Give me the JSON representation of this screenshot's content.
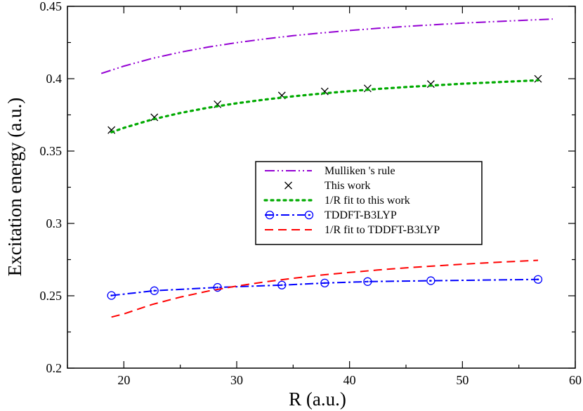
{
  "chart_data": {
    "type": "line",
    "title": "",
    "xlabel": "R (a.u.)",
    "ylabel": "Excitation energy (a.u.)",
    "xlim": [
      15,
      60
    ],
    "ylim": [
      0.2,
      0.45
    ],
    "xticks": [
      20,
      30,
      40,
      50,
      60
    ],
    "xtick_labels": [
      "20",
      "30",
      "40",
      "50",
      "60"
    ],
    "yticks": [
      0.2,
      0.25,
      0.3,
      0.35,
      0.4,
      0.45
    ],
    "ytick_labels": [
      "0.2",
      "0.25",
      "0.3",
      "0.35",
      "0.4",
      "0.45"
    ],
    "grid": false,
    "legend_position": "center-right",
    "series": [
      {
        "name": "Mulliken 's rule",
        "style": "dash-dot-dot",
        "color": "#9400d3",
        "marker": "none",
        "x": [
          18,
          20,
          22.5,
          25,
          27.5,
          30,
          32.5,
          35,
          37.5,
          40,
          42.5,
          45,
          47.5,
          50,
          52.5,
          55,
          58
        ],
        "y": [
          0.4036,
          0.4087,
          0.414,
          0.4183,
          0.4219,
          0.4249,
          0.4275,
          0.4297,
          0.4316,
          0.4333,
          0.4348,
          0.4361,
          0.4373,
          0.4384,
          0.4393,
          0.4402,
          0.4412
        ]
      },
      {
        "name": "This work",
        "style": "none",
        "color": "#000000",
        "marker": "x",
        "x": [
          18.9,
          22.7,
          28.3,
          34.0,
          37.8,
          41.6,
          47.2,
          56.7
        ],
        "y": [
          0.3645,
          0.3733,
          0.3823,
          0.3884,
          0.3912,
          0.3933,
          0.3963,
          0.3999
        ]
      },
      {
        "name": "1/R fit to this work",
        "style": "dotted",
        "color": "#00aa00",
        "marker": "none",
        "x": [
          18.9,
          20,
          22.5,
          25,
          27.5,
          30,
          32.5,
          35,
          37.5,
          40,
          42.5,
          45,
          47.5,
          50,
          52.5,
          55,
          56.7
        ],
        "y": [
          0.363,
          0.366,
          0.3718,
          0.3763,
          0.38,
          0.383,
          0.3856,
          0.3878,
          0.3897,
          0.3914,
          0.3929,
          0.3942,
          0.3954,
          0.3965,
          0.3974,
          0.3983,
          0.3989
        ]
      },
      {
        "name": "TDDFT-B3LYP",
        "style": "dash-dot",
        "color": "#0000ff",
        "marker": "circle-dot",
        "x": [
          18.9,
          22.7,
          28.3,
          34.0,
          37.8,
          41.6,
          47.2,
          56.7
        ],
        "y": [
          0.2502,
          0.2535,
          0.2558,
          0.2574,
          0.2588,
          0.2598,
          0.2604,
          0.2613
        ]
      },
      {
        "name": "1/R fit to TDDFT-B3LYP",
        "style": "dashed",
        "color": "#ff0000",
        "marker": "none",
        "x": [
          18.9,
          20,
          22.5,
          25,
          27.5,
          30,
          32.5,
          35,
          37.5,
          40,
          42.5,
          45,
          47.5,
          50,
          52.5,
          55,
          56.7
        ],
        "y": [
          0.2353,
          0.2375,
          0.244,
          0.2491,
          0.2533,
          0.2567,
          0.2596,
          0.2621,
          0.2643,
          0.2661,
          0.2678,
          0.2693,
          0.2706,
          0.2718,
          0.2729,
          0.2739,
          0.2745
        ]
      }
    ]
  }
}
